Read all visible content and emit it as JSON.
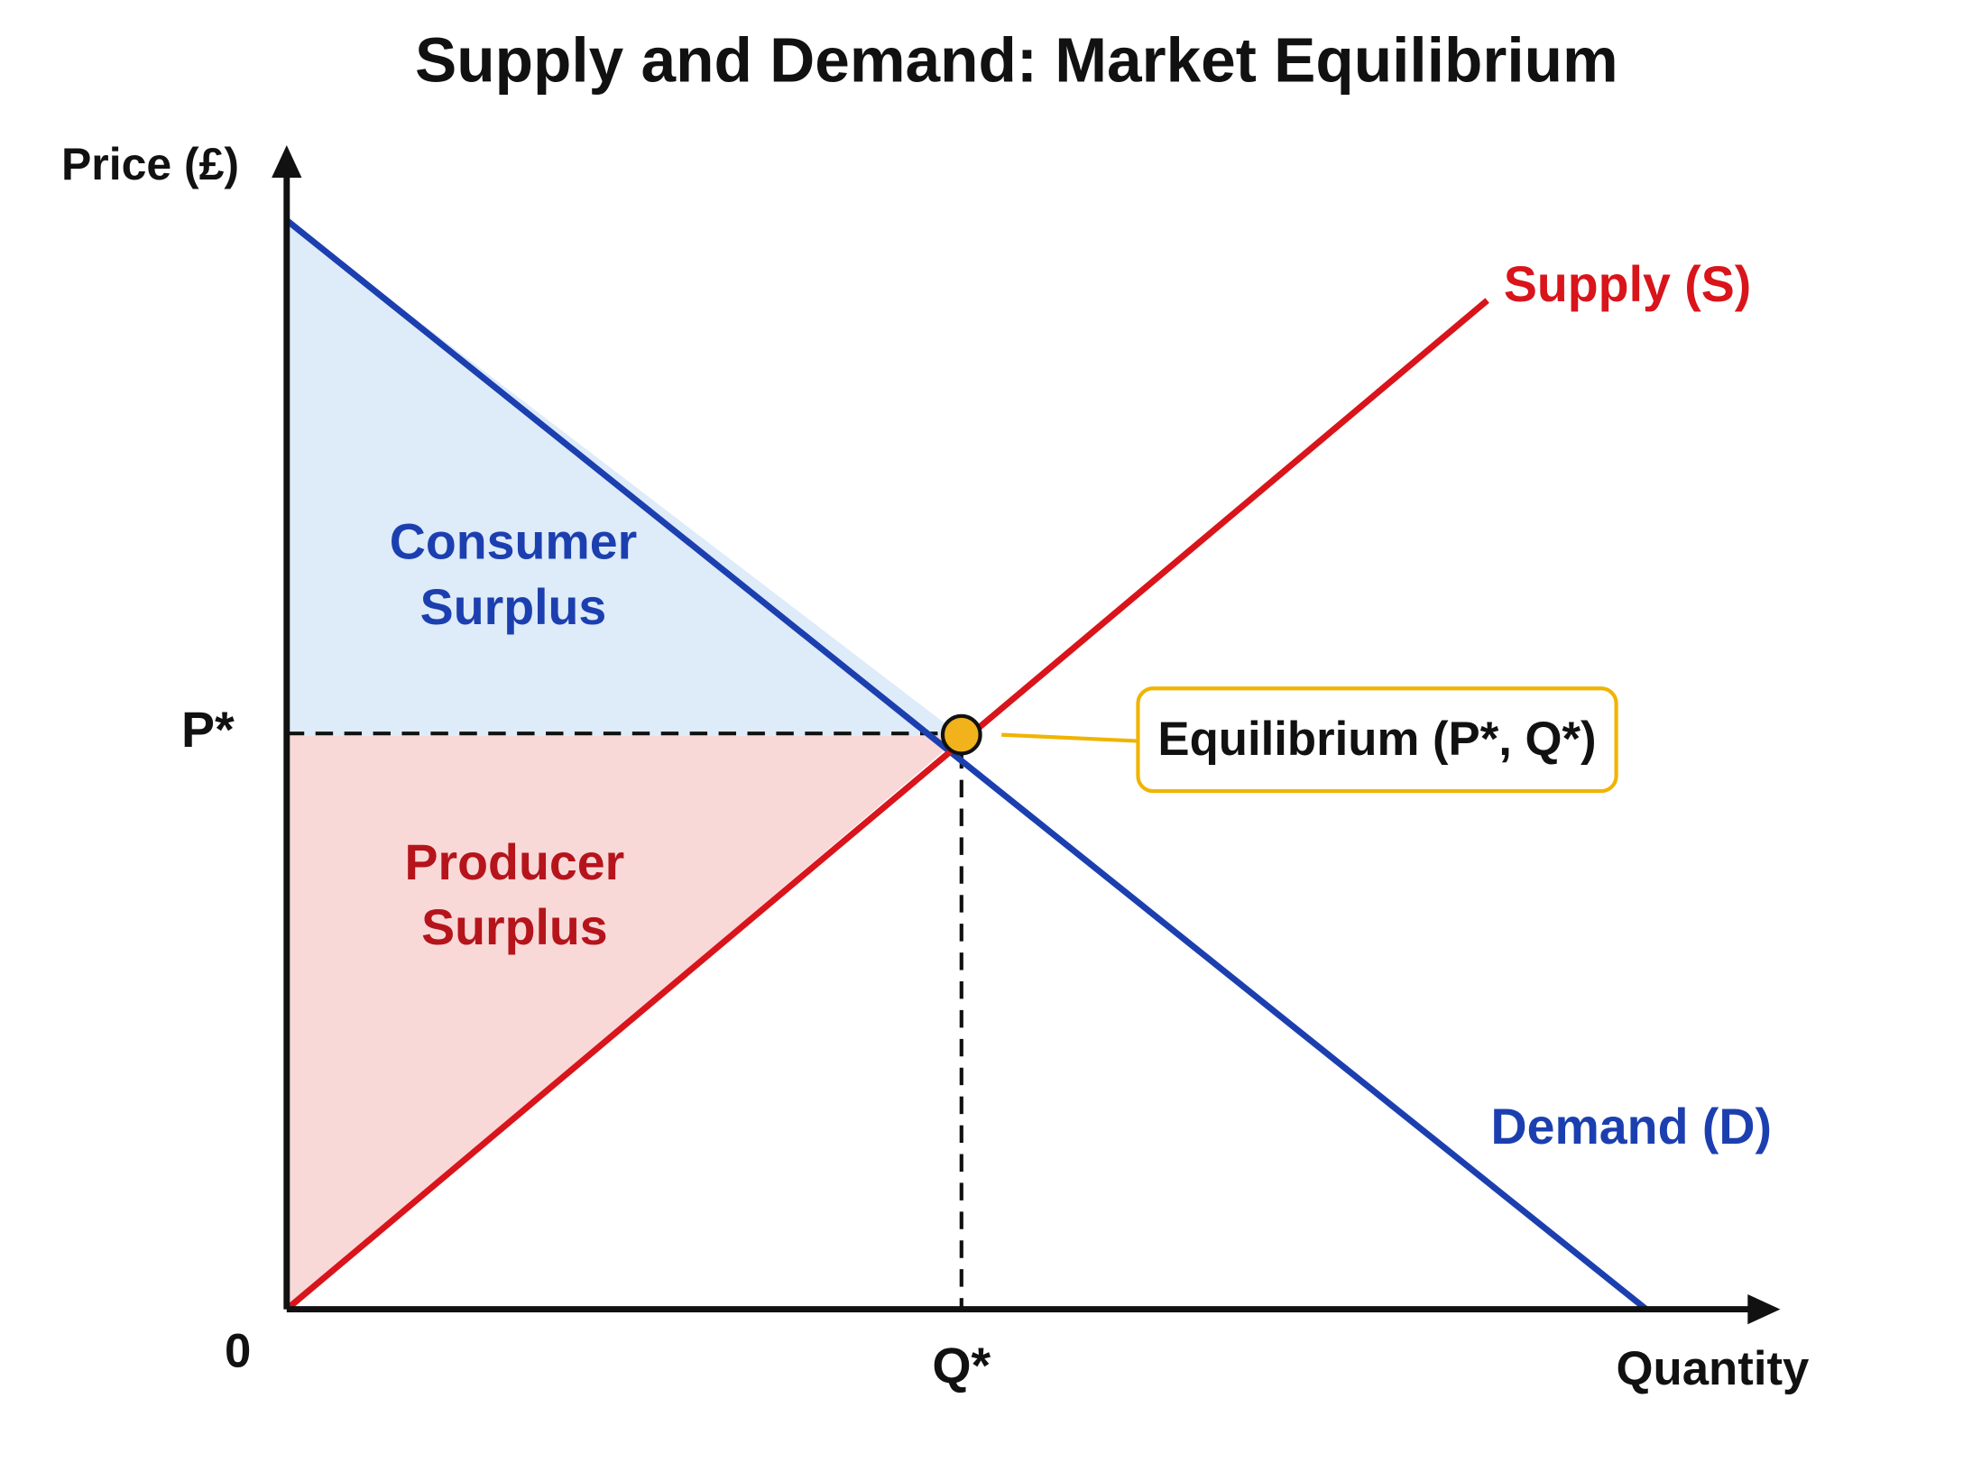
{
  "header": {
    "title": "Supply and Demand: Market Equilibrium"
  },
  "axes": {
    "y_label": "Price (£)",
    "x_label": "Quantity",
    "origin": "0",
    "price_marker": "P*",
    "quantity_marker": "Q*"
  },
  "curves": {
    "supply": "Supply (S)",
    "demand": "Demand (D)"
  },
  "areas": {
    "consumer_surplus": [
      "Consumer",
      "Surplus"
    ],
    "producer_surplus": [
      "Producer",
      "Surplus"
    ]
  },
  "callout": {
    "equilibrium": "Equilibrium (P*, Q*)"
  }
}
